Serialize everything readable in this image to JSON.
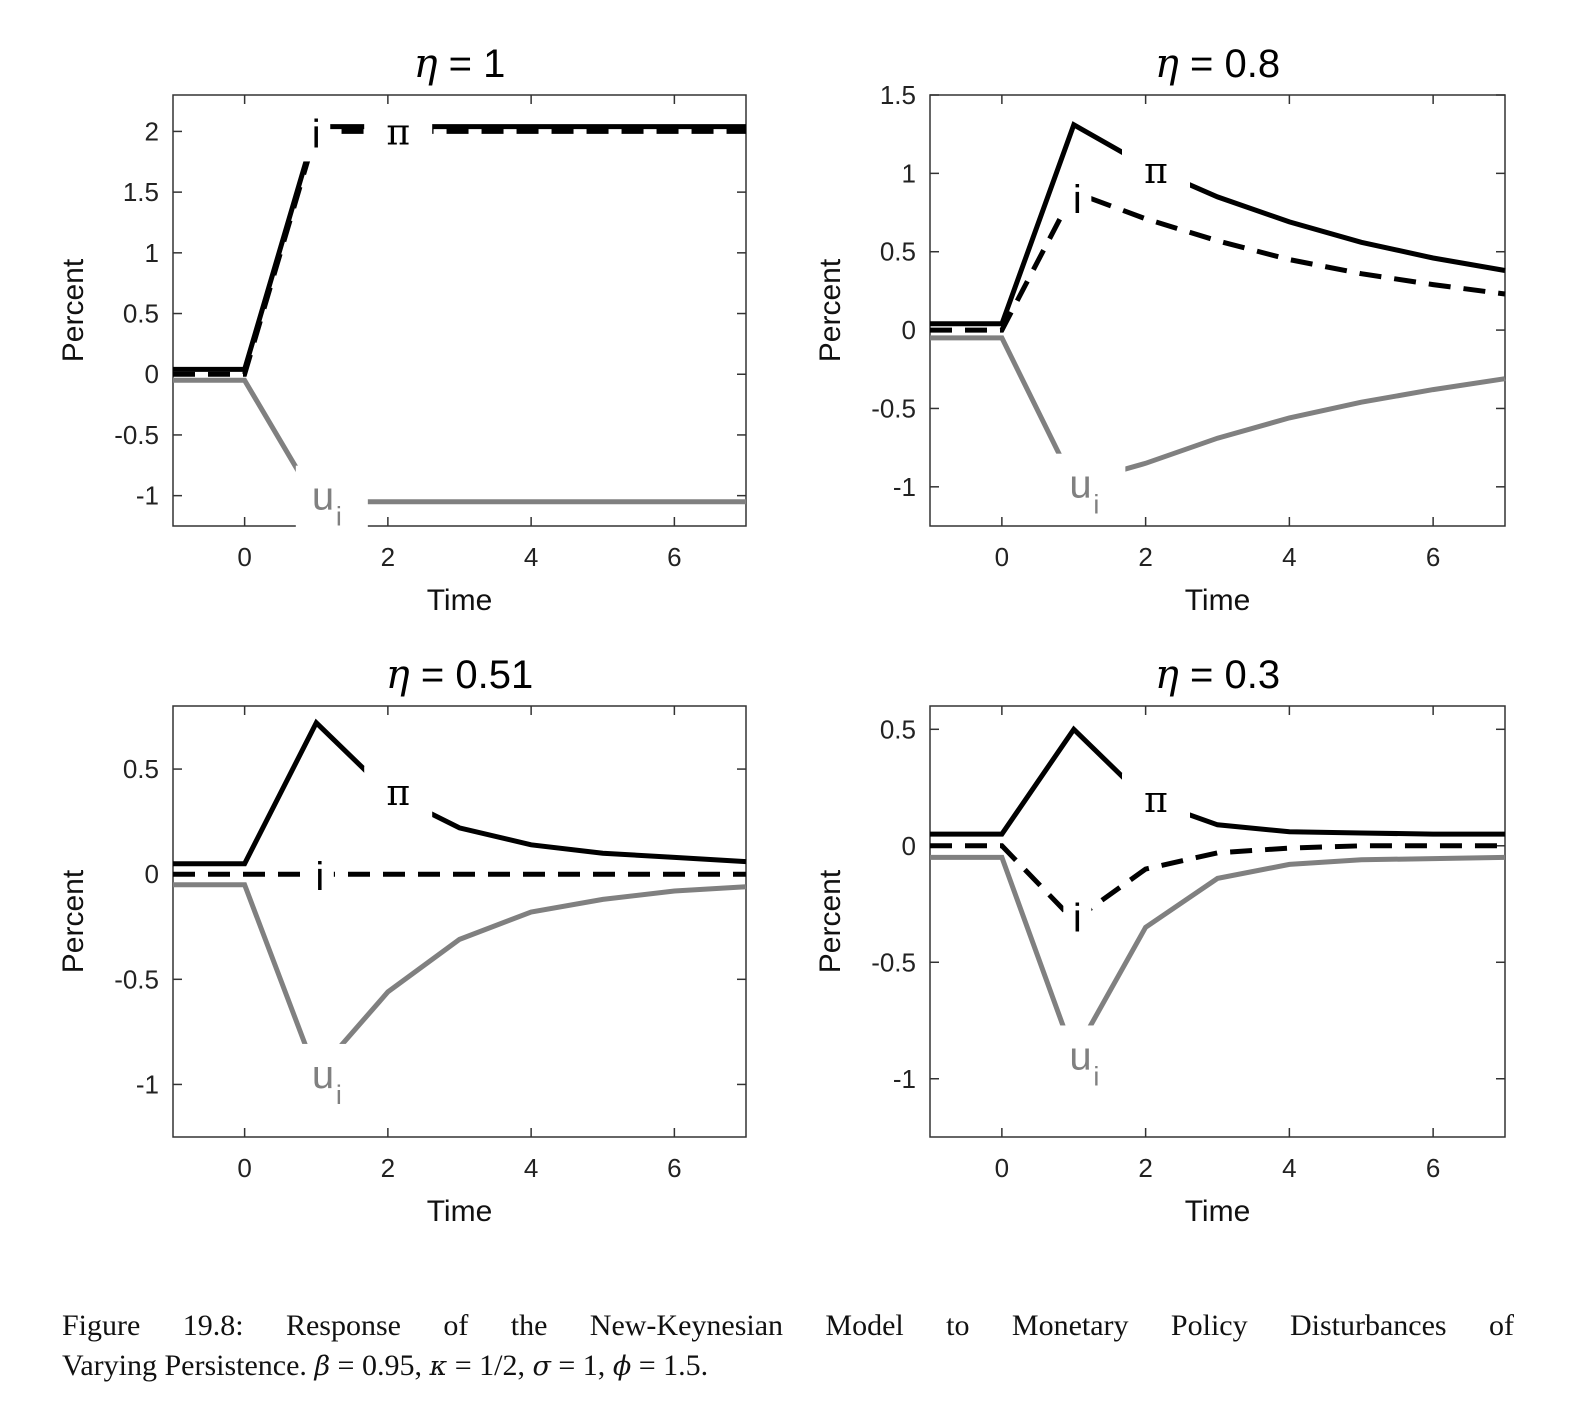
{
  "figure": {
    "caption_line1": "Figure 19.8: Response of the New-Keynesian Model to Monetary Policy Disturbances of",
    "caption_line2_prefix": "Varying Persistence.",
    "caption_params": [
      {
        "symbol": "β",
        "value": " = 0.95,"
      },
      {
        "symbol": "κ",
        "value": " = 1/2,"
      },
      {
        "symbol": "σ",
        "value": " = 1,"
      },
      {
        "symbol": "ϕ",
        "value": " = 1.5."
      }
    ]
  },
  "colors": {
    "pi": "#000000",
    "i": "#000000",
    "u": "#808080",
    "axis": "#333333"
  },
  "chart_data": [
    {
      "type": "line",
      "title_symbol": "η",
      "title_value": " = 1",
      "xlabel": "Time",
      "ylabel": "Percent",
      "xlim": [
        -1,
        7
      ],
      "ylim": [
        -1.25,
        2.3
      ],
      "xticks": [
        0,
        2,
        4,
        6
      ],
      "yticks": [
        -1,
        -0.5,
        0,
        0.5,
        1,
        1.5,
        2
      ],
      "ytick_labels": [
        "-1",
        "-0.5",
        "0",
        "0.5",
        "1",
        "1.5",
        "2"
      ],
      "x": [
        -1,
        0,
        1,
        2,
        3,
        4,
        5,
        6,
        7
      ],
      "series": [
        {
          "key": "pi",
          "values": [
            0.04,
            0.04,
            2.04,
            2.04,
            2.04,
            2.04,
            2.04,
            2.04,
            2.04
          ]
        },
        {
          "key": "i",
          "values": [
            0,
            0,
            2.0,
            2.0,
            2.0,
            2.0,
            2.0,
            2.0,
            2.0
          ]
        },
        {
          "key": "u",
          "values": [
            -0.05,
            -0.05,
            -1.05,
            -1.05,
            -1.05,
            -1.05,
            -1.05,
            -1.05,
            -1.05
          ]
        }
      ],
      "labels": {
        "pi": "π",
        "i": "i",
        "u": "u",
        "u_sub": "i"
      }
    },
    {
      "type": "line",
      "title_symbol": "η",
      "title_value": " = 0.8",
      "xlabel": "Time",
      "ylabel": "Percent",
      "xlim": [
        -1,
        7
      ],
      "ylim": [
        -1.25,
        1.5
      ],
      "xticks": [
        0,
        2,
        4,
        6
      ],
      "yticks": [
        -1,
        -0.5,
        0,
        0.5,
        1,
        1.5
      ],
      "ytick_labels": [
        "-1",
        "-0.5",
        "0",
        "0.5",
        "1",
        "1.5"
      ],
      "x": [
        -1,
        0,
        1,
        2,
        3,
        4,
        5,
        6,
        7
      ],
      "series": [
        {
          "key": "pi",
          "values": [
            0.04,
            0.04,
            1.31,
            1.05,
            0.85,
            0.69,
            0.56,
            0.46,
            0.38
          ]
        },
        {
          "key": "i",
          "values": [
            0,
            0,
            0.88,
            0.71,
            0.57,
            0.45,
            0.36,
            0.29,
            0.23
          ]
        },
        {
          "key": "u",
          "values": [
            -0.05,
            -0.05,
            -0.98,
            -0.85,
            -0.69,
            -0.56,
            -0.46,
            -0.38,
            -0.31
          ]
        }
      ],
      "labels": {
        "pi": "π",
        "i": "i",
        "u": "u",
        "u_sub": "i"
      }
    },
    {
      "type": "line",
      "title_symbol": "η",
      "title_value": " = 0.51",
      "xlabel": "Time",
      "ylabel": "Percent",
      "xlim": [
        -1,
        7
      ],
      "ylim": [
        -1.25,
        0.8
      ],
      "xticks": [
        0,
        2,
        4,
        6
      ],
      "yticks": [
        -1,
        -0.5,
        0,
        0.5
      ],
      "ytick_labels": [
        "-1",
        "-0.5",
        "0",
        "0.5"
      ],
      "x": [
        -1,
        0,
        1,
        2,
        3,
        4,
        5,
        6,
        7
      ],
      "series": [
        {
          "key": "pi",
          "values": [
            0.05,
            0.05,
            0.72,
            0.39,
            0.22,
            0.14,
            0.1,
            0.08,
            0.06
          ]
        },
        {
          "key": "i",
          "values": [
            0,
            0,
            0,
            0,
            0,
            0,
            0,
            0,
            0
          ]
        },
        {
          "key": "u",
          "values": [
            -0.05,
            -0.05,
            -0.95,
            -0.56,
            -0.31,
            -0.18,
            -0.12,
            -0.08,
            -0.06
          ]
        }
      ],
      "labels": {
        "pi": "π",
        "i": "i",
        "u": "u",
        "u_sub": "i"
      }
    },
    {
      "type": "line",
      "title_symbol": "η",
      "title_value": " = 0.3",
      "xlabel": "Time",
      "ylabel": "Percent",
      "xlim": [
        -1,
        7
      ],
      "ylim": [
        -1.25,
        0.6
      ],
      "xticks": [
        0,
        2,
        4,
        6
      ],
      "yticks": [
        -1,
        -0.5,
        0,
        0.5
      ],
      "ytick_labels": [
        "-1",
        "-0.5",
        "0",
        "0.5"
      ],
      "x": [
        -1,
        0,
        1,
        2,
        3,
        4,
        5,
        6,
        7
      ],
      "series": [
        {
          "key": "pi",
          "values": [
            0.05,
            0.05,
            0.5,
            0.2,
            0.09,
            0.06,
            0.055,
            0.05,
            0.05
          ]
        },
        {
          "key": "i",
          "values": [
            0,
            0,
            -0.32,
            -0.1,
            -0.03,
            -0.01,
            0,
            0,
            0
          ]
        },
        {
          "key": "u",
          "values": [
            -0.05,
            -0.05,
            -0.9,
            -0.35,
            -0.14,
            -0.08,
            -0.06,
            -0.055,
            -0.05
          ]
        }
      ],
      "labels": {
        "pi": "π",
        "i": "i",
        "u": "u",
        "u_sub": "i"
      }
    }
  ]
}
